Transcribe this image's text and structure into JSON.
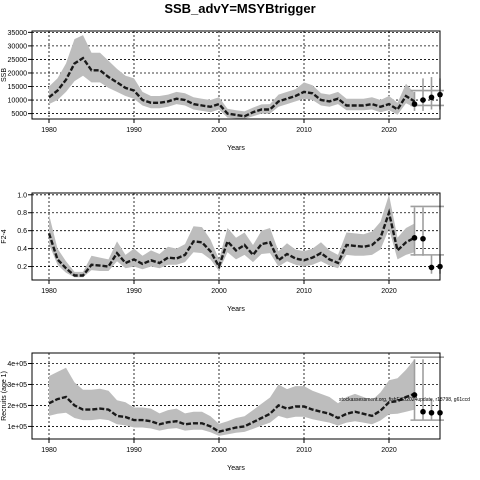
{
  "title": "SSB_advY=MSYBtrigger",
  "colors": {
    "band": "#bdbdbd",
    "line": "#1a1a1a",
    "frame": "#000000",
    "whisker": "#9e9e9e",
    "grid": "#000000"
  },
  "chart_data": [
    {
      "type": "line",
      "id": "ssb",
      "ylabel": "SSB",
      "xlabel": "Years",
      "xlim": [
        1978,
        2026
      ],
      "ylim": [
        3000,
        35500
      ],
      "xticks": [
        1980,
        1990,
        2000,
        2010,
        2020
      ],
      "yticks": [
        5000,
        10000,
        15000,
        20000,
        25000,
        30000,
        35000
      ],
      "ytick_labels": [
        "5000",
        "10000",
        "15000",
        "20000",
        "25000",
        "30000",
        "35000"
      ],
      "grid": true,
      "series": [
        {
          "x": [
            1980,
            1981,
            1982,
            1983,
            1984,
            1985,
            1986,
            1987,
            1988,
            1989,
            1990,
            1991,
            1992,
            1993,
            1994,
            1995,
            1996,
            1997,
            1998,
            1999,
            2000,
            2001,
            2002,
            2003,
            2004,
            2005,
            2006,
            2007,
            2008,
            2009,
            2010,
            2011,
            2012,
            2013,
            2014,
            2015,
            2016,
            2017,
            2018,
            2019,
            2020,
            2021,
            2022,
            2023
          ],
          "y": [
            11000,
            13500,
            17500,
            23500,
            25500,
            21000,
            21000,
            18500,
            16500,
            14500,
            13500,
            10000,
            9000,
            9000,
            9500,
            10500,
            10000,
            8500,
            8000,
            7500,
            8500,
            5000,
            4500,
            4000,
            5500,
            6500,
            6500,
            9500,
            10500,
            11500,
            13000,
            12500,
            10000,
            9500,
            10500,
            8000,
            8000,
            8000,
            8500,
            7500,
            8500,
            6500,
            11500,
            9500
          ],
          "lower": [
            8500,
            10000,
            13000,
            17000,
            19000,
            16500,
            16500,
            14500,
            13000,
            11500,
            10500,
            8000,
            7000,
            7000,
            7500,
            8500,
            8000,
            6500,
            6000,
            5500,
            6500,
            3500,
            3200,
            3000,
            4000,
            5000,
            5000,
            7500,
            8500,
            9500,
            10500,
            10000,
            8000,
            7500,
            8500,
            6200,
            6200,
            6200,
            6500,
            5500,
            6300,
            4600,
            8800,
            7300
          ],
          "upper": [
            15000,
            18000,
            23500,
            32500,
            34000,
            27500,
            27500,
            24500,
            21500,
            19000,
            18000,
            13000,
            11500,
            11500,
            12000,
            13000,
            12500,
            11000,
            10500,
            10000,
            11000,
            6800,
            6200,
            5800,
            7200,
            8400,
            8500,
            12000,
            13000,
            14000,
            16500,
            15500,
            12500,
            12000,
            13000,
            10500,
            10500,
            10500,
            11000,
            10000,
            11500,
            9000,
            16000,
            12500
          ]
        }
      ],
      "projection": {
        "x": [
          2023,
          2024,
          2025,
          2026
        ],
        "y": [
          8500,
          10000,
          11000,
          12000
        ],
        "whisker_low": [
          6000,
          6000,
          6500,
          6500
        ],
        "whisker_high": [
          13000,
          18000,
          18500,
          18000
        ],
        "hline": [
          8000,
          13500
        ]
      }
    },
    {
      "type": "line",
      "id": "f",
      "ylabel": "F2-4",
      "xlabel": "Years",
      "xlim": [
        1978,
        2026
      ],
      "ylim": [
        0.05,
        1.02
      ],
      "xticks": [
        1980,
        1990,
        2000,
        2010,
        2020
      ],
      "yticks": [
        0.2,
        0.4,
        0.6,
        0.8,
        1.0
      ],
      "ytick_labels": [
        "0.2",
        "0.4",
        "0.6",
        "0.8",
        "1.0"
      ],
      "grid": true,
      "series": [
        {
          "x": [
            1980,
            1981,
            1982,
            1983,
            1984,
            1985,
            1986,
            1987,
            1988,
            1989,
            1990,
            1991,
            1992,
            1993,
            1994,
            1995,
            1996,
            1997,
            1998,
            1999,
            2000,
            2001,
            2002,
            2003,
            2004,
            2005,
            2006,
            2007,
            2008,
            2009,
            2010,
            2011,
            2012,
            2013,
            2014,
            2015,
            2016,
            2017,
            2018,
            2019,
            2020,
            2021,
            2022,
            2023
          ],
          "y": [
            0.57,
            0.28,
            0.18,
            0.1,
            0.1,
            0.22,
            0.21,
            0.2,
            0.35,
            0.24,
            0.28,
            0.23,
            0.27,
            0.24,
            0.3,
            0.29,
            0.33,
            0.48,
            0.47,
            0.37,
            0.2,
            0.48,
            0.38,
            0.44,
            0.33,
            0.45,
            0.47,
            0.27,
            0.34,
            0.29,
            0.27,
            0.3,
            0.35,
            0.28,
            0.24,
            0.44,
            0.43,
            0.42,
            0.44,
            0.52,
            0.8,
            0.38,
            0.47,
            0.52
          ],
          "lower": [
            0.45,
            0.22,
            0.13,
            0.08,
            0.08,
            0.16,
            0.15,
            0.15,
            0.26,
            0.18,
            0.2,
            0.17,
            0.2,
            0.18,
            0.22,
            0.22,
            0.25,
            0.36,
            0.35,
            0.28,
            0.15,
            0.36,
            0.28,
            0.33,
            0.25,
            0.34,
            0.35,
            0.2,
            0.26,
            0.22,
            0.2,
            0.22,
            0.26,
            0.21,
            0.18,
            0.33,
            0.32,
            0.32,
            0.33,
            0.39,
            0.62,
            0.28,
            0.33,
            0.36
          ],
          "upper": [
            0.78,
            0.4,
            0.26,
            0.14,
            0.14,
            0.32,
            0.3,
            0.28,
            0.48,
            0.33,
            0.4,
            0.32,
            0.38,
            0.34,
            0.42,
            0.4,
            0.45,
            0.65,
            0.64,
            0.5,
            0.28,
            0.63,
            0.52,
            0.58,
            0.44,
            0.6,
            0.63,
            0.37,
            0.46,
            0.39,
            0.37,
            0.4,
            0.47,
            0.38,
            0.33,
            0.58,
            0.57,
            0.56,
            0.59,
            0.7,
            1.0,
            0.52,
            0.63,
            0.68
          ]
        }
      ],
      "projection": {
        "x": [
          2023,
          2024,
          2025,
          2026
        ],
        "y": [
          0.52,
          0.51,
          0.19,
          0.2
        ],
        "whisker_low": [
          0.32,
          0.32,
          0.12,
          0.12
        ],
        "whisker_high": [
          0.86,
          0.86,
          0.33,
          0.33
        ],
        "hline": [
          0.33,
          0.87
        ]
      }
    },
    {
      "type": "line",
      "id": "rec",
      "ylabel": "Recruits (age 1)",
      "xlabel": "Years",
      "xlim": [
        1978,
        2026
      ],
      "ylim": [
        40000,
        450000
      ],
      "xticks": [
        1980,
        1990,
        2000,
        2010,
        2020
      ],
      "yticks": [
        100000,
        200000,
        300000,
        400000
      ],
      "ytick_labels": [
        "1e+05",
        "2e+05",
        "3e+05",
        "4e+05"
      ],
      "grid": true,
      "annotation": "stockassessment.org, fishFit2/2024update, r18798, g61ccd",
      "series": [
        {
          "x": [
            1980,
            1981,
            1982,
            1983,
            1984,
            1985,
            1986,
            1987,
            1988,
            1989,
            1990,
            1991,
            1992,
            1993,
            1994,
            1995,
            1996,
            1997,
            1998,
            1999,
            2000,
            2001,
            2002,
            2003,
            2004,
            2005,
            2006,
            2007,
            2008,
            2009,
            2010,
            2011,
            2012,
            2013,
            2014,
            2015,
            2016,
            2017,
            2018,
            2019,
            2020,
            2021,
            2022,
            2023
          ],
          "y": [
            210000,
            230000,
            240000,
            200000,
            180000,
            180000,
            185000,
            180000,
            150000,
            145000,
            130000,
            130000,
            125000,
            110000,
            120000,
            125000,
            110000,
            115000,
            115000,
            100000,
            75000,
            85000,
            95000,
            100000,
            120000,
            140000,
            160000,
            200000,
            185000,
            195000,
            195000,
            180000,
            170000,
            160000,
            140000,
            160000,
            170000,
            160000,
            150000,
            175000,
            215000,
            220000,
            240000,
            255000
          ],
          "lower": [
            150000,
            160000,
            165000,
            140000,
            130000,
            130000,
            135000,
            130000,
            110000,
            105000,
            95000,
            95000,
            90000,
            80000,
            88000,
            92000,
            80000,
            84000,
            84000,
            72000,
            55000,
            62000,
            70000,
            74000,
            88000,
            104000,
            118000,
            150000,
            138000,
            146000,
            146000,
            134000,
            126000,
            118000,
            104000,
            118000,
            125000,
            118000,
            110000,
            128000,
            158000,
            160000,
            170000,
            180000
          ],
          "upper": [
            340000,
            360000,
            380000,
            310000,
            275000,
            275000,
            280000,
            270000,
            225000,
            215000,
            190000,
            190000,
            185000,
            162000,
            178000,
            185000,
            162000,
            170000,
            170000,
            148000,
            112000,
            125000,
            140000,
            148000,
            178000,
            208000,
            238000,
            300000,
            278000,
            292000,
            292000,
            270000,
            255000,
            240000,
            210000,
            240000,
            255000,
            240000,
            225000,
            262000,
            320000,
            330000,
            370000,
            420000
          ]
        }
      ],
      "projection": {
        "x": [
          2023,
          2024,
          2025,
          2026
        ],
        "y": [
          250000,
          170000,
          165000,
          165000
        ],
        "whisker_low": [
          130000,
          130000,
          130000,
          130000
        ],
        "whisker_high": [
          420000,
          420000,
          230000,
          230000
        ],
        "hline": [
          130000,
          430000
        ]
      }
    }
  ]
}
